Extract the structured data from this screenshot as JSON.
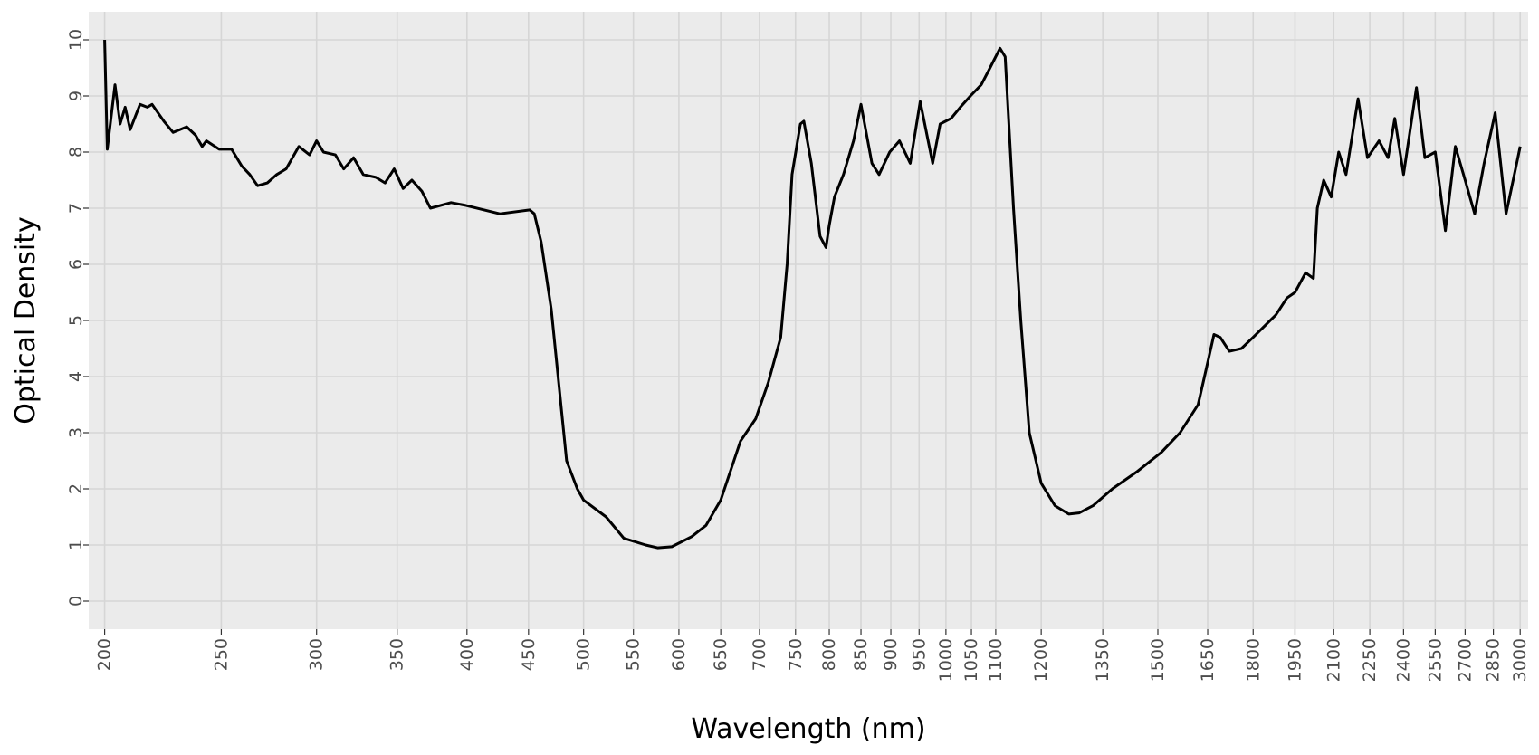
{
  "chart_data": {
    "type": "line",
    "x_label": "Wavelength (nm)",
    "y_label": "Optical Density",
    "xscale": "log",
    "grid": true,
    "xlim": [
      194,
      3046
    ],
    "ylim": [
      -0.5,
      10.5
    ],
    "xticks": [
      200,
      250,
      300,
      350,
      400,
      450,
      500,
      550,
      600,
      650,
      700,
      750,
      800,
      850,
      900,
      950,
      1000,
      1050,
      1100,
      1200,
      1350,
      1500,
      1650,
      1800,
      1950,
      2100,
      2250,
      2400,
      2550,
      2700,
      2850,
      3000
    ],
    "yticks": [
      0,
      1,
      2,
      3,
      4,
      5,
      6,
      7,
      8,
      9,
      10
    ],
    "x": [
      200,
      201,
      204,
      206,
      208,
      210,
      214,
      217,
      219,
      224,
      228,
      234,
      238,
      241,
      243,
      249,
      255,
      260,
      264,
      268,
      273,
      278,
      283,
      290,
      296,
      300,
      304,
      311,
      316,
      322,
      328,
      336,
      342,
      348,
      354,
      360,
      367,
      373,
      388,
      399,
      426,
      451,
      455,
      461,
      470,
      484,
      494,
      500,
      522,
      540,
      563,
      576,
      592,
      615,
      632,
      650,
      675,
      695,
      712,
      729,
      738,
      745,
      757,
      762,
      773,
      786,
      795,
      800,
      808,
      822,
      838,
      850,
      868,
      880,
      898,
      915,
      934,
      952,
      975,
      989,
      1010,
      1028,
      1048,
      1070,
      1088,
      1109,
      1120,
      1138,
      1154,
      1173,
      1200,
      1232,
      1265,
      1290,
      1325,
      1375,
      1440,
      1510,
      1565,
      1620,
      1640,
      1670,
      1690,
      1720,
      1760,
      1800,
      1880,
      1920,
      1950,
      1990,
      2020,
      2035,
      2060,
      2090,
      2120,
      2150,
      2200,
      2240,
      2290,
      2330,
      2360,
      2400,
      2460,
      2500,
      2550,
      2600,
      2650,
      2700,
      2750,
      2800,
      2860,
      2920,
      2980,
      3000
    ],
    "series": [
      {
        "color": "#000000",
        "values": [
          10,
          8.05,
          9.2,
          8.5,
          8.8,
          8.4,
          8.85,
          8.8,
          8.85,
          8.55,
          8.35,
          8.45,
          8.3,
          8.1,
          8.2,
          8.05,
          8.05,
          7.75,
          7.6,
          7.4,
          7.45,
          7.6,
          7.7,
          8.1,
          7.95,
          8.2,
          8.0,
          7.95,
          7.7,
          7.9,
          7.6,
          7.55,
          7.45,
          7.7,
          7.35,
          7.5,
          7.3,
          7.0,
          7.1,
          7.05,
          6.9,
          6.97,
          6.9,
          6.4,
          5.2,
          2.5,
          2.0,
          1.8,
          1.5,
          1.12,
          1.0,
          0.95,
          0.97,
          1.15,
          1.35,
          1.8,
          2.85,
          3.25,
          3.9,
          4.7,
          6.0,
          7.6,
          8.5,
          8.55,
          7.8,
          6.5,
          6.3,
          6.7,
          7.2,
          7.6,
          8.2,
          8.85,
          7.8,
          7.6,
          8.0,
          8.2,
          7.8,
          8.9,
          7.8,
          8.5,
          8.6,
          8.8,
          9.0,
          9.2,
          9.5,
          9.85,
          9.7,
          7.0,
          5.0,
          3.0,
          2.1,
          1.7,
          1.55,
          1.57,
          1.7,
          2.0,
          2.3,
          2.65,
          3.0,
          3.5,
          4.0,
          4.75,
          4.7,
          4.45,
          4.5,
          4.7,
          5.1,
          5.4,
          5.5,
          5.85,
          5.75,
          7.0,
          7.5,
          7.2,
          8.0,
          7.6,
          8.95,
          7.9,
          8.2,
          7.9,
          8.6,
          7.6,
          9.15,
          7.9,
          8.0,
          6.6,
          8.1,
          7.5,
          6.9,
          7.8,
          8.7,
          6.9,
          7.8,
          8.1
        ]
      }
    ]
  }
}
